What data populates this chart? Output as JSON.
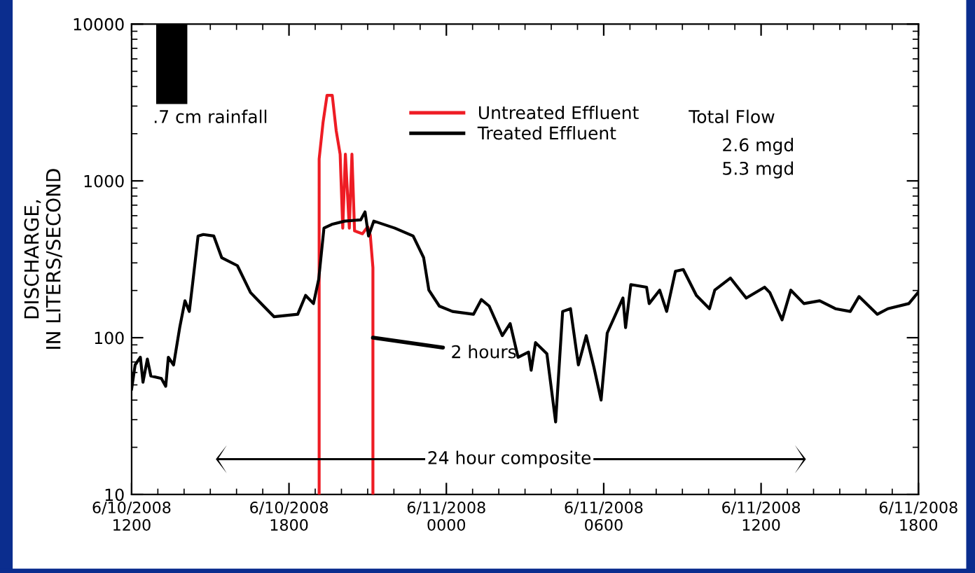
{
  "chart_data": {
    "type": "line",
    "ylabel": "DISCHARGE,\nIN LITERS/SECOND",
    "log": "y",
    "xlim": [
      "2008-06-10T12:00",
      "2008-06-11T18:00"
    ],
    "xticks": [
      {
        "value": "2008-06-10T12:00",
        "label": "6/10/2008\n1200"
      },
      {
        "value": "2008-06-10T18:00",
        "label": "6/10/2008\n1800"
      },
      {
        "value": "2008-06-11T00:00",
        "label": "6/11/2008\n0000"
      },
      {
        "value": "2008-06-11T06:00",
        "label": "6/11/2008\n0600"
      },
      {
        "value": "2008-06-11T12:00",
        "label": "6/11/2008\n1200"
      },
      {
        "value": "2008-06-11T18:00",
        "label": "6/11/2008\n1800"
      }
    ],
    "ylim": [
      10,
      10000
    ],
    "yticks": [
      10,
      100,
      1000,
      10000
    ],
    "grid": false,
    "legend": "top",
    "marker": "none",
    "line_style": "solid",
    "annotations": [
      ".7 cm rainfall",
      "Total Flow",
      "2.6 mgd",
      "5.3 mgd",
      {
        "text": "2 hours",
        "x": "2008-06-10T21:12",
        "y": 100
      },
      "24 hour composite"
    ],
    "series": [
      {
        "name": "Untreated Effluent",
        "color": "#ee1c24",
        "x": [
          "2008-06-10T19:09",
          "2008-06-10T19:09",
          "2008-06-10T19:18",
          "2008-06-10T19:27",
          "2008-06-10T19:39",
          "2008-06-10T19:48",
          "2008-06-10T19:57",
          "2008-06-10T20:03",
          "2008-06-10T20:09",
          "2008-06-10T20:18",
          "2008-06-10T20:24",
          "2008-06-10T20:30",
          "2008-06-10T20:48",
          "2008-06-10T21:00",
          "2008-06-10T21:06",
          "2008-06-10T21:12",
          "2008-06-10T21:12"
        ],
        "values": [
          10,
          1380,
          2370,
          3510,
          3510,
          2090,
          1480,
          500,
          1480,
          500,
          1480,
          480,
          460,
          510,
          450,
          280,
          10
        ]
      },
      {
        "name": "Treated Effluent",
        "color": "#000000",
        "x": [
          "2008-06-10T12:00",
          "2008-06-10T12:08",
          "2008-06-10T12:20",
          "2008-06-10T12:26",
          "2008-06-10T12:36",
          "2008-06-10T12:44",
          "2008-06-10T13:08",
          "2008-06-10T13:18",
          "2008-06-10T13:24",
          "2008-06-10T13:36",
          "2008-06-10T13:50",
          "2008-06-10T14:02",
          "2008-06-10T14:12",
          "2008-06-10T14:20",
          "2008-06-10T14:32",
          "2008-06-10T14:44",
          "2008-06-10T15:08",
          "2008-06-10T15:26",
          "2008-06-10T16:02",
          "2008-06-10T16:32",
          "2008-06-10T17:02",
          "2008-06-10T17:26",
          "2008-06-10T18:20",
          "2008-06-10T18:38",
          "2008-06-10T18:56",
          "2008-06-10T19:08",
          "2008-06-10T19:20",
          "2008-06-10T19:38",
          "2008-06-10T20:08",
          "2008-06-10T20:44",
          "2008-06-10T20:54",
          "2008-06-10T21:02",
          "2008-06-10T21:14",
          "2008-06-10T22:02",
          "2008-06-10T22:44",
          "2008-06-10T23:08",
          "2008-06-10T23:20",
          "2008-06-10T23:44",
          "2008-06-11T00:14",
          "2008-06-11T01:02",
          "2008-06-11T01:20",
          "2008-06-11T01:38",
          "2008-06-11T02:08",
          "2008-06-11T02:26",
          "2008-06-11T02:44",
          "2008-06-11T03:08",
          "2008-06-11T03:14",
          "2008-06-11T03:24",
          "2008-06-11T03:50",
          "2008-06-11T04:10",
          "2008-06-11T04:26",
          "2008-06-11T04:44",
          "2008-06-11T05:02",
          "2008-06-11T05:20",
          "2008-06-11T05:38",
          "2008-06-11T05:54",
          "2008-06-11T06:08",
          "2008-06-11T06:44",
          "2008-06-11T06:50",
          "2008-06-11T07:02",
          "2008-06-11T07:38",
          "2008-06-11T07:44",
          "2008-06-11T08:08",
          "2008-06-11T08:24",
          "2008-06-11T08:44",
          "2008-06-11T09:02",
          "2008-06-11T09:32",
          "2008-06-11T10:02",
          "2008-06-11T10:14",
          "2008-06-11T10:50",
          "2008-06-11T11:26",
          "2008-06-11T12:08",
          "2008-06-11T12:20",
          "2008-06-11T12:48",
          "2008-06-11T13:08",
          "2008-06-11T13:38",
          "2008-06-11T14:14",
          "2008-06-11T14:50",
          "2008-06-11T15:24",
          "2008-06-11T15:44",
          "2008-06-11T16:26",
          "2008-06-11T16:50",
          "2008-06-11T17:38",
          "2008-06-11T17:59"
        ],
        "values": [
          47,
          67,
          75,
          52,
          73,
          57,
          55,
          49,
          75,
          67,
          116,
          172,
          147,
          227,
          445,
          455,
          445,
          324,
          288,
          194,
          159,
          136,
          141,
          186,
          165,
          236,
          500,
          528,
          554,
          564,
          634,
          445,
          554,
          500,
          445,
          324,
          201,
          159,
          147,
          141,
          175,
          159,
          103,
          123,
          75,
          81,
          62,
          93,
          79,
          29,
          147,
          153,
          67,
          103,
          64,
          40,
          107,
          179,
          116,
          218,
          210,
          165,
          201,
          147,
          265,
          272,
          186,
          153,
          201,
          240,
          179,
          210,
          194,
          130,
          201,
          165,
          172,
          153,
          147,
          183,
          141,
          153,
          165,
          194
        ]
      }
    ]
  }
}
